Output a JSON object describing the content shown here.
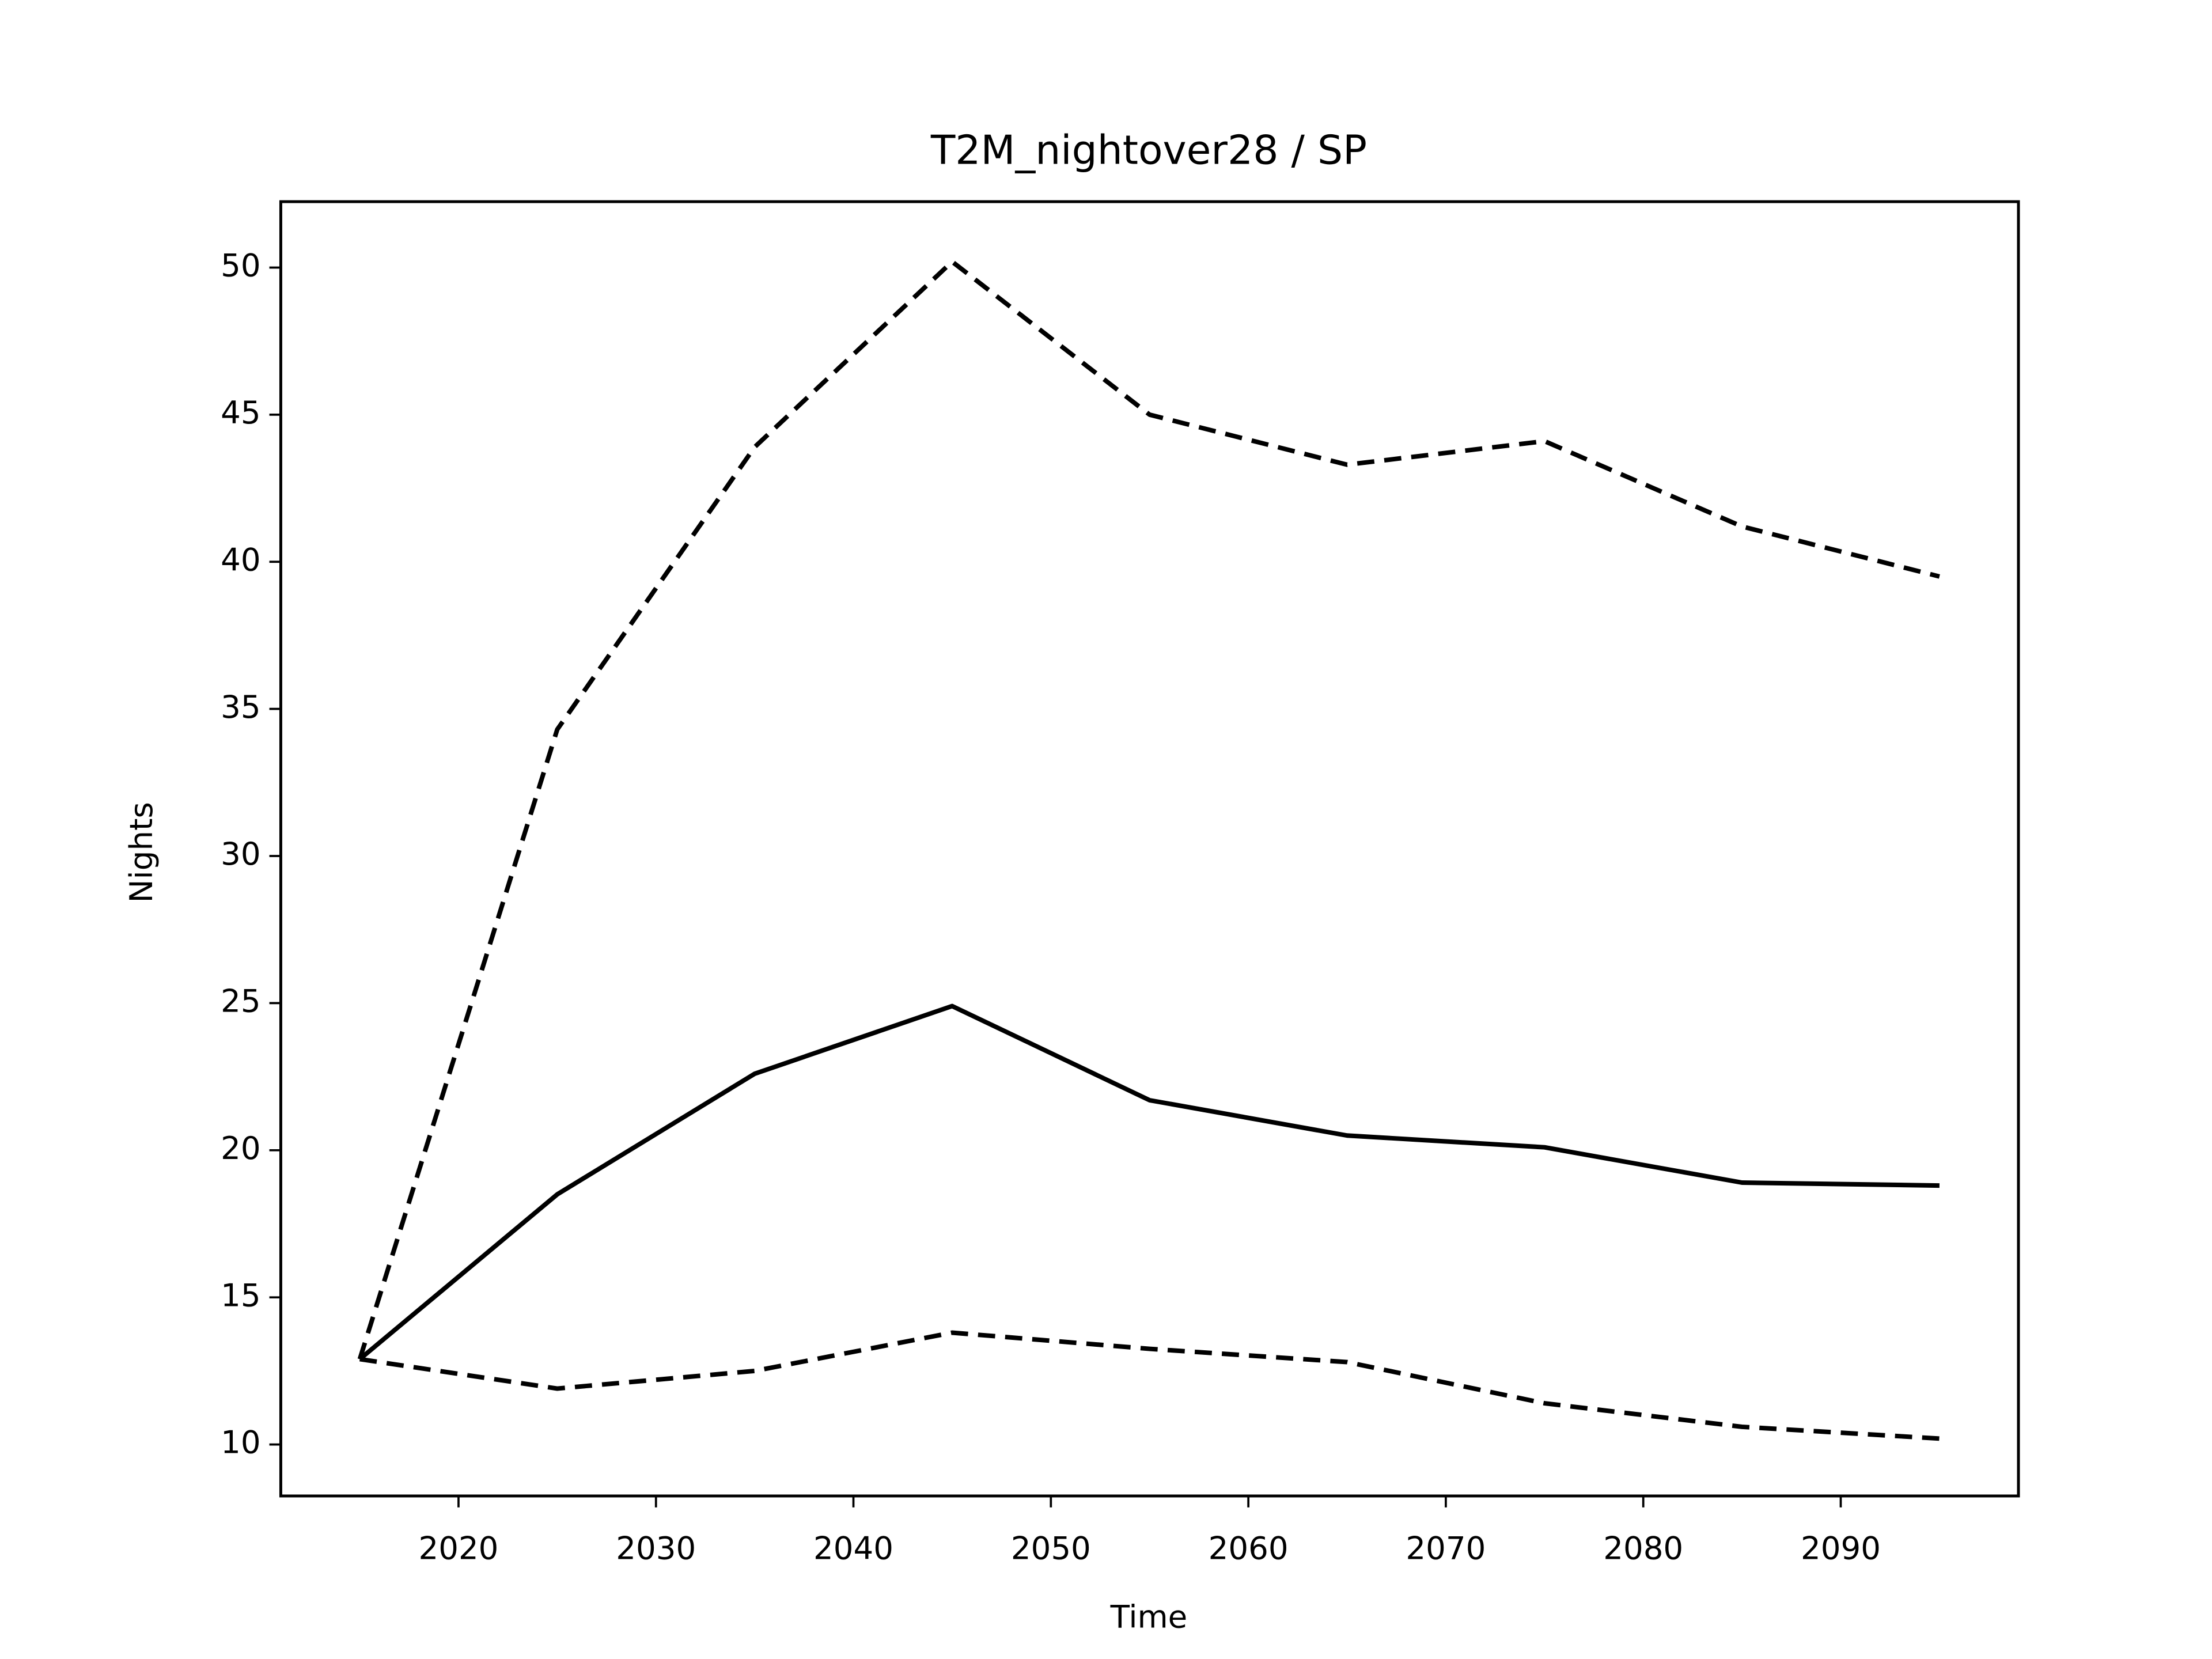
{
  "chart_data": {
    "type": "line",
    "title": "T2M_nightover28 / SP",
    "xlabel": "Time",
    "ylabel": "Nights",
    "x": [
      2015,
      2025,
      2035,
      2045,
      2055,
      2065,
      2075,
      2085,
      2095
    ],
    "series": [
      {
        "color": "#000000",
        "linestyle": "solid",
        "values": [
          12.9,
          18.5,
          22.6,
          24.9,
          21.7,
          20.5,
          20.1,
          18.9,
          18.8
        ]
      },
      {
        "color": "#000000",
        "linestyle": "dashed",
        "values": [
          12.9,
          34.3,
          43.9,
          50.2,
          45.0,
          43.3,
          44.1,
          41.2,
          39.5
        ]
      },
      {
        "color": "#000000",
        "linestyle": "dashed",
        "values": [
          12.9,
          11.9,
          12.5,
          13.8,
          13.25,
          12.8,
          11.4,
          10.6,
          10.2
        ]
      }
    ],
    "xlim": [
      2011,
      2099
    ],
    "xticks": [
      2020,
      2030,
      2040,
      2050,
      2060,
      2070,
      2080,
      2090
    ],
    "ylim": [
      8.25,
      52.24
    ],
    "yticks": [
      10,
      15,
      20,
      25,
      30,
      35,
      40,
      45,
      50
    ],
    "grid": false
  }
}
